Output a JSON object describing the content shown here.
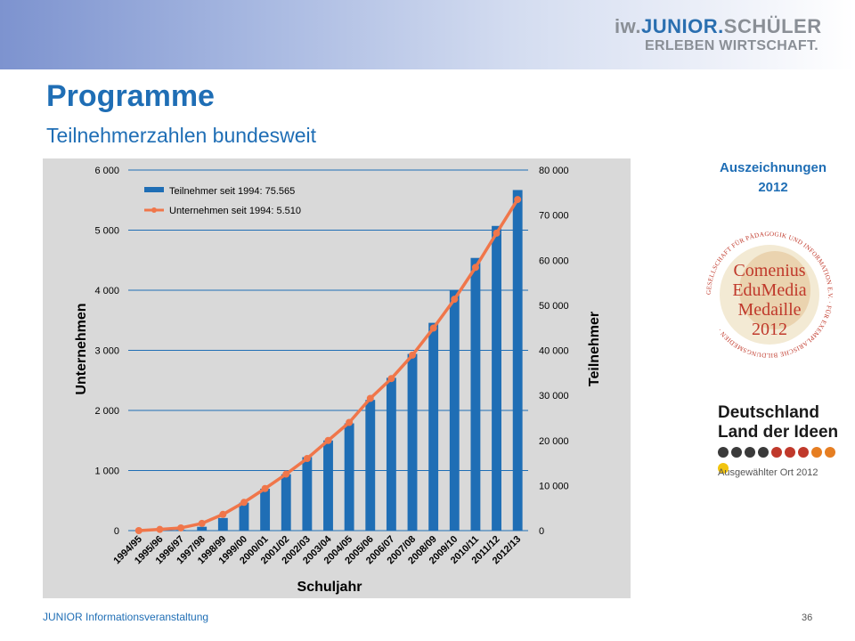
{
  "header": {
    "brand_prefix": "iw.",
    "brand_junior": "JUNIOR.",
    "brand_suffix": "SCHÜLER",
    "brand_line2": "ERLEBEN WIRTSCHAFT."
  },
  "slide": {
    "title": "Programme",
    "subtitle": "Teilnehmerzahlen bundesweit"
  },
  "awards": {
    "title_line1": "Auszeichnungen",
    "title_line2": "2012",
    "comenius": {
      "ring_text": "GESELLSCHAFT FÜR PÄDAGOGIK UND INFORMATION E.V. · FÜR EXEMPLARISCHE BILDUNGSMEDIEN ·",
      "line1": "Comenius",
      "line2": "EduMedia",
      "line3": "Medaille",
      "line4": "2012"
    },
    "land": {
      "line1": "Deutschland",
      "line2": "Land der Ideen",
      "sub": "Ausgewählter Ort 2012",
      "dot_colors": [
        "#3a3a3a",
        "#3a3a3a",
        "#3a3a3a",
        "#3a3a3a",
        "#c0392b",
        "#c0392b",
        "#c0392b",
        "#e67e22",
        "#e67e22",
        "#f1c40f"
      ]
    }
  },
  "footer": {
    "text": "JUNIOR Informationsveranstaltung",
    "page": "36"
  },
  "chart_data": {
    "type": "bar",
    "title": "",
    "xlabel": "Schuljahr",
    "ylabel": "Unternehmen",
    "y2label": "Teilnehmer",
    "categories": [
      "1994/95",
      "1995/96",
      "1996/97",
      "1997/98",
      "1998/99",
      "1999/00",
      "2000/01",
      "2001/02",
      "2002/03",
      "2003/04",
      "2004/05",
      "2005/06",
      "2006/07",
      "2007/08",
      "2008/09",
      "2009/10",
      "2010/11",
      "2011/12",
      "2012/13"
    ],
    "ylim": [
      0,
      6000
    ],
    "y_ticks": [
      "0",
      "1 000",
      "2 000",
      "3 000",
      "4 000",
      "5 000",
      "6 000"
    ],
    "y2lim": [
      0,
      80000
    ],
    "y2_ticks": [
      "0",
      "10 000",
      "20 000",
      "30 000",
      "40 000",
      "50 000",
      "60 000",
      "70 000",
      "80 000"
    ],
    "grid": true,
    "legend_position": "top-left",
    "series": [
      {
        "name": "Teilnehmer seit 1994: 75.565",
        "type": "bar",
        "axis": "right",
        "color": "#1f6eb5",
        "values": [
          5,
          30,
          150,
          850,
          2800,
          6200,
          9300,
          12500,
          16300,
          20000,
          23800,
          29000,
          33900,
          39200,
          46100,
          53300,
          60500,
          67600,
          75565
        ]
      },
      {
        "name": "Unternehmen seit 1994: 5.510",
        "type": "line",
        "axis": "left",
        "color": "#f0764a",
        "values": [
          0,
          20,
          45,
          120,
          270,
          470,
          700,
          940,
          1200,
          1500,
          1800,
          2200,
          2530,
          2920,
          3370,
          3850,
          4380,
          4950,
          5510
        ]
      }
    ]
  }
}
